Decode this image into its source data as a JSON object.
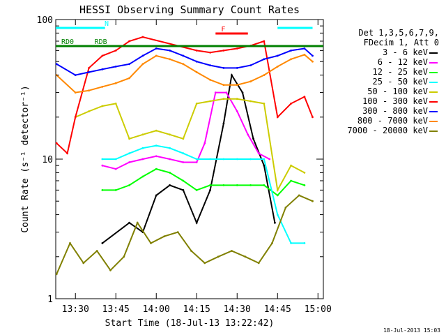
{
  "chart_data": {
    "type": "line",
    "title": "HESSI Observing Summary Count Rates",
    "xlabel": "Start Time (18-Jul-13 13:22:42)",
    "ylabel": "Count Rate (s⁻¹ detector⁻¹)",
    "yscale": "log",
    "ylim": [
      1,
      100
    ],
    "xlim": [
      "13:22:42",
      "15:02:00"
    ],
    "x_tick_labels": [
      "13:30",
      "13:45",
      "14:00",
      "14:15",
      "14:30",
      "14:45",
      "15:00"
    ],
    "y_tick_labels": [
      "1",
      "10",
      "100"
    ],
    "legend_header": [
      "Det 1,3,5,6,7,9,",
      "FDecim 1, Att 0"
    ],
    "series": [
      {
        "name": "3 - 6 keV",
        "color": "#000000",
        "x": [
          "13:40",
          "13:50",
          "13:55",
          "14:00",
          "14:05",
          "14:10",
          "14:15",
          "14:20",
          "14:25",
          "14:28",
          "14:32",
          "14:36",
          "14:40",
          "14:44"
        ],
        "y": [
          2.5,
          3.5,
          3.0,
          5.5,
          6.5,
          6.0,
          3.5,
          6.0,
          18.0,
          40.0,
          30.0,
          14.0,
          9.0,
          3.5
        ]
      },
      {
        "name": "6 - 12 keV",
        "color": "#ff00ff",
        "x": [
          "13:40",
          "13:45",
          "13:50",
          "13:55",
          "14:00",
          "14:05",
          "14:10",
          "14:15",
          "14:18",
          "14:22",
          "14:26",
          "14:30",
          "14:34",
          "14:38",
          "14:42"
        ],
        "y": [
          9.0,
          8.5,
          9.5,
          10.0,
          10.5,
          10.0,
          9.5,
          9.5,
          13.0,
          30.0,
          30.0,
          22.0,
          15.0,
          11.0,
          10.0
        ]
      },
      {
        "name": "12 - 25 keV",
        "color": "#00ff00",
        "x": [
          "13:40",
          "13:45",
          "13:50",
          "13:55",
          "14:00",
          "14:05",
          "14:10",
          "14:15",
          "14:20",
          "14:25",
          "14:30",
          "14:35",
          "14:40",
          "14:45",
          "14:50",
          "14:55"
        ],
        "y": [
          6.0,
          6.0,
          6.5,
          7.5,
          8.5,
          8.0,
          7.0,
          6.0,
          6.5,
          6.5,
          6.5,
          6.5,
          6.5,
          5.5,
          7.0,
          6.5
        ]
      },
      {
        "name": "25 - 50 keV",
        "color": "#00ffff",
        "x": [
          "13:40",
          "13:45",
          "13:50",
          "13:55",
          "14:00",
          "14:05",
          "14:10",
          "14:15",
          "14:20",
          "14:25",
          "14:30",
          "14:35",
          "14:40",
          "14:45",
          "14:50",
          "14:55"
        ],
        "y": [
          10.0,
          10.0,
          11.0,
          12.0,
          12.5,
          12.0,
          11.0,
          10.0,
          10.0,
          10.0,
          10.0,
          10.0,
          10.0,
          4.0,
          2.5,
          2.5
        ]
      },
      {
        "name": "50 - 100 keV",
        "color": "#cccc00",
        "x": [
          "13:30",
          "13:35",
          "13:40",
          "13:45",
          "13:50",
          "13:55",
          "14:00",
          "14:05",
          "14:10",
          "14:15",
          "14:20",
          "14:25",
          "14:30",
          "14:35",
          "14:40",
          "14:45",
          "14:50",
          "14:55"
        ],
        "y": [
          20.0,
          22.0,
          24.0,
          25.0,
          14.0,
          15.0,
          16.0,
          15.0,
          14.0,
          25.0,
          26.0,
          27.0,
          27.0,
          26.0,
          25.0,
          6.0,
          9.0,
          8.0
        ]
      },
      {
        "name": "100 - 300 keV",
        "color": "#ff0000",
        "x": [
          "13:23",
          "13:27",
          "13:30",
          "13:35",
          "13:40",
          "13:45",
          "13:50",
          "13:55",
          "14:15",
          "14:20",
          "14:25",
          "14:30",
          "14:35",
          "14:40",
          "14:45",
          "14:50",
          "14:55",
          "14:58"
        ],
        "y": [
          13.0,
          11.0,
          20.0,
          45.0,
          55.0,
          60.0,
          70.0,
          75.0,
          60.0,
          58.0,
          60.0,
          62.0,
          65.0,
          70.0,
          20.0,
          25.0,
          28.0,
          20.0
        ]
      },
      {
        "name": "300 - 800 keV",
        "color": "#0000ff",
        "x": [
          "13:23",
          "13:30",
          "13:35",
          "13:40",
          "13:45",
          "13:50",
          "13:55",
          "14:00",
          "14:05",
          "14:10",
          "14:15",
          "14:20",
          "14:25",
          "14:30",
          "14:35",
          "14:40",
          "14:45",
          "14:50",
          "14:55",
          "14:58"
        ],
        "y": [
          48.0,
          40.0,
          42.0,
          44.0,
          46.0,
          48.0,
          55.0,
          62.0,
          60.0,
          55.0,
          50.0,
          47.0,
          45.0,
          45.0,
          47.0,
          52.0,
          55.0,
          60.0,
          62.0,
          55.0
        ]
      },
      {
        "name": "800 - 7000 keV",
        "color": "#ff8800",
        "x": [
          "13:23",
          "13:30",
          "13:35",
          "13:40",
          "13:45",
          "13:50",
          "13:55",
          "14:00",
          "14:05",
          "14:10",
          "14:15",
          "14:20",
          "14:25",
          "14:30",
          "14:35",
          "14:40",
          "14:45",
          "14:50",
          "14:55",
          "14:58"
        ],
        "y": [
          40.0,
          30.0,
          31.0,
          33.0,
          35.0,
          38.0,
          48.0,
          55.0,
          52.0,
          48.0,
          42.0,
          37.0,
          34.0,
          34.0,
          36.0,
          40.0,
          46.0,
          52.0,
          56.0,
          50.0
        ]
      },
      {
        "name": "7000 - 20000 keV",
        "color": "#808000",
        "x": [
          "13:23",
          "13:28",
          "13:33",
          "13:38",
          "13:43",
          "13:48",
          "13:53",
          "13:58",
          "14:03",
          "14:08",
          "14:13",
          "14:18",
          "14:23",
          "14:28",
          "14:33",
          "14:38",
          "14:43",
          "14:48",
          "14:53",
          "14:58"
        ],
        "y": [
          1.5,
          2.5,
          1.8,
          2.2,
          1.6,
          2.0,
          3.5,
          2.5,
          2.8,
          3.0,
          2.2,
          1.8,
          2.0,
          2.2,
          2.0,
          1.8,
          2.5,
          4.5,
          5.5,
          5.0
        ]
      }
    ],
    "annotations": {
      "flags": [
        {
          "label": "N",
          "color": "#00ffff",
          "segments": [
            [
              "13:22:42",
              "13:41"
            ],
            [
              "14:45",
              "14:58"
            ]
          ]
        },
        {
          "label": "F",
          "color": "#ff0000",
          "segments": [
            [
              "14:22",
              "14:34"
            ]
          ]
        },
        {
          "label": "RD0",
          "color": "#008000",
          "segments": [
            [
              "13:22:42",
              "13:53"
            ],
            [
              "14:32",
              "15:02"
            ]
          ]
        },
        {
          "label": "RDB",
          "color": "#008000",
          "segments": [
            [
              "13:35",
              "14:38"
            ]
          ]
        }
      ]
    },
    "grid": false,
    "legend_position": "right"
  },
  "footer": {
    "generated": "18-Jul-2013 15:03"
  }
}
